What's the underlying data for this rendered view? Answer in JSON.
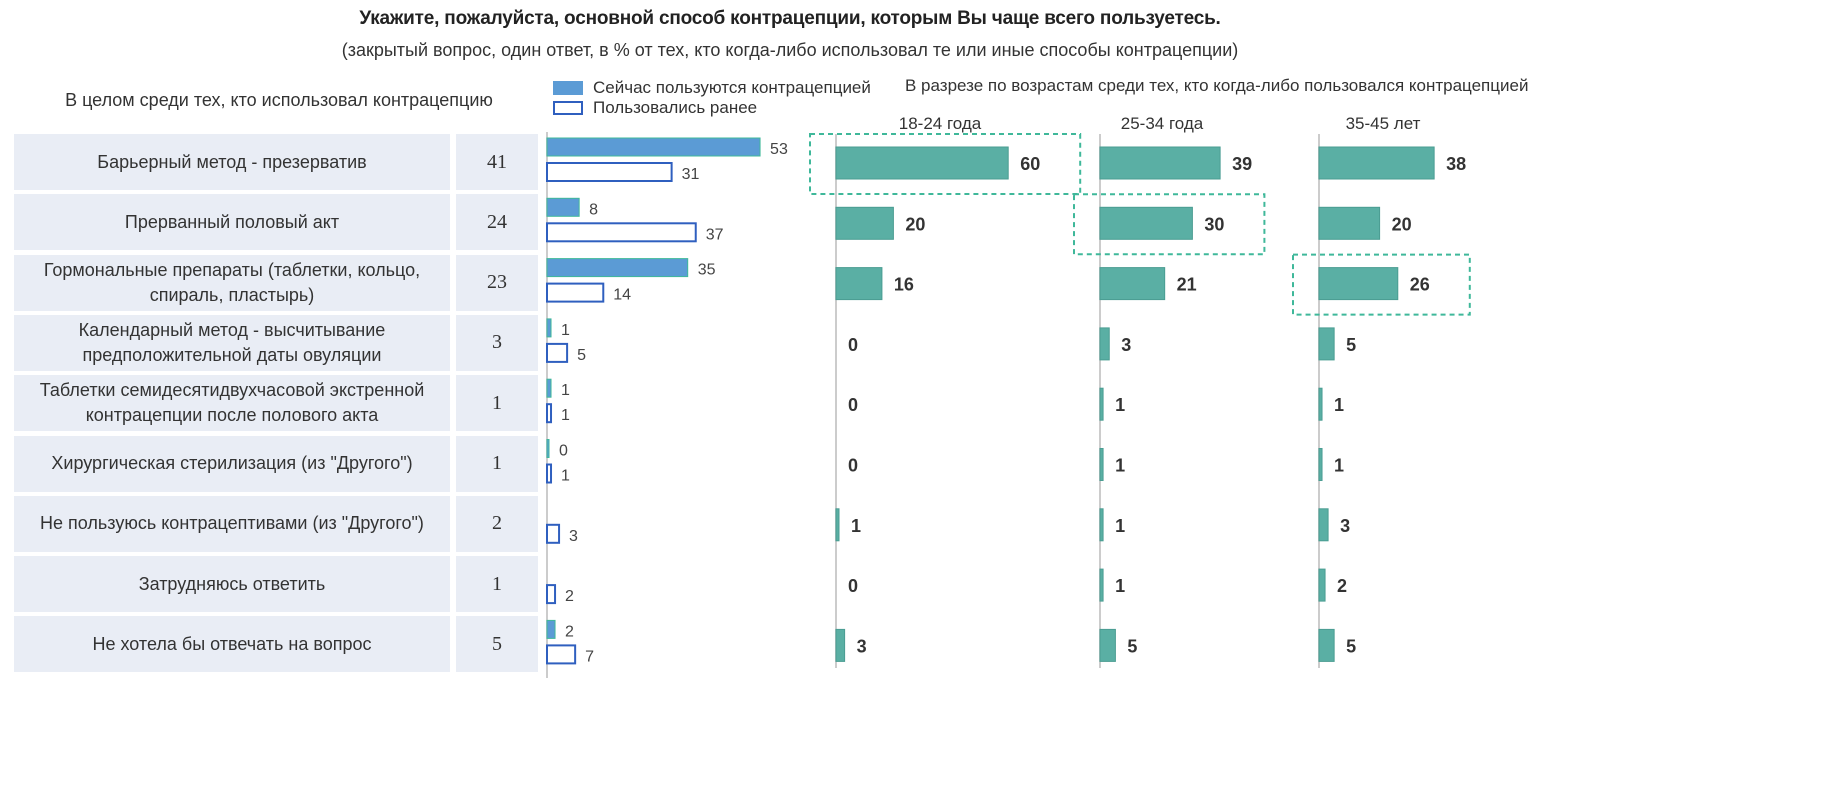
{
  "title": "Укажите, пожалуйста, основной способ контрацепции, которым Вы чаще всего пользуетесь.",
  "subtitle": "(закрытый вопрос, один ответ, в % от тех, кто когда-либо использовал те или иные способы контрацепции)",
  "left_heading": "В целом среди тех, кто использовал контрацепцию",
  "age_heading": "В разрезе по возрастам среди тех, кто когда-либо пользовался контрацепцией",
  "colors": {
    "current": "#5b9bd5",
    "past_border": "#2f5fbf",
    "age": "#5aafa4",
    "highlight": "#3fb89a",
    "cell": "#e9edf5"
  },
  "chart_data": {
    "type": "bar",
    "categories": [
      "Барьерный метод - презерватив",
      "Прерванный половый акт",
      "Гормональные препараты (таблетки, кольцо, спираль, пластырь)",
      "Календарный метод - высчитывание предположительной даты овуляции",
      "Таблетки семидесятидвухчасовой экстренной контрацепции после полового акта",
      "Хирургическая стерилизация (из \"Другого\")",
      "Не пользуюсь контрацептивами (из \"Другого\")",
      "Затрудняюсь ответить",
      "Не хотела бы отвечать на вопрос"
    ],
    "overall": [
      41,
      24,
      23,
      3,
      1,
      1,
      2,
      1,
      5
    ],
    "legend": [
      "Сейчас пользуются контрацепцией",
      "Пользовались ранее"
    ],
    "series": [
      {
        "name": "Сейчас пользуются контрацепцией",
        "values": [
          53,
          8,
          35,
          1,
          1,
          0,
          null,
          null,
          2
        ]
      },
      {
        "name": "Пользовались ранее",
        "values": [
          31,
          37,
          14,
          5,
          1,
          1,
          3,
          2,
          7
        ]
      }
    ],
    "age_groups": [
      {
        "name": "18-24 года",
        "values": [
          60,
          20,
          16,
          0,
          0,
          0,
          1,
          0,
          3
        ],
        "highlight": 0
      },
      {
        "name": "25-34 года",
        "values": [
          39,
          30,
          21,
          3,
          1,
          1,
          1,
          1,
          5
        ],
        "highlight": 1
      },
      {
        "name": "35-45 лет",
        "values": [
          38,
          20,
          26,
          5,
          1,
          1,
          3,
          2,
          5
        ],
        "highlight": 2
      }
    ]
  }
}
